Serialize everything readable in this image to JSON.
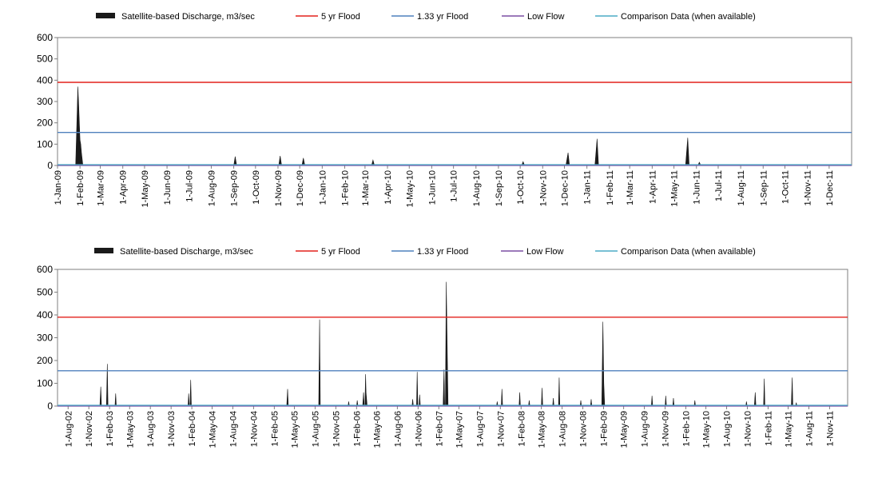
{
  "colors": {
    "discharge": "#1a1a1a",
    "flood5": "#e3201b",
    "flood133": "#4f81bd",
    "lowflow": "#7b4ea3",
    "comparison": "#4bacc6",
    "frame": "#7f7f7f",
    "background": "#ffffff"
  },
  "legend": [
    {
      "key": "discharge",
      "label": "Satellite-based Discharge, m3/sec",
      "symbol": "area"
    },
    {
      "key": "flood5",
      "label": "5 yr Flood",
      "symbol": "line"
    },
    {
      "key": "flood133",
      "label": "1.33 yr Flood",
      "symbol": "line"
    },
    {
      "key": "lowflow",
      "label": "Low Flow",
      "symbol": "line"
    },
    {
      "key": "comparison",
      "label": "Comparison Data (when available)",
      "symbol": "line"
    }
  ],
  "chart_data": [
    {
      "type": "area",
      "title": "",
      "xlabel": "",
      "ylabel": "",
      "ylim": [
        0,
        600
      ],
      "yticks": [
        0,
        100,
        200,
        300,
        400,
        500,
        600
      ],
      "xticks": [
        "1-Jan-09",
        "1-Feb-09",
        "1-Mar-09",
        "1-Apr-09",
        "1-May-09",
        "1-Jun-09",
        "1-Jul-09",
        "1-Aug-09",
        "1-Sep-09",
        "1-Oct-09",
        "1-Nov-09",
        "1-Dec-09",
        "1-Jan-10",
        "1-Feb-10",
        "1-Mar-10",
        "1-Apr-10",
        "1-May-10",
        "1-Jun-10",
        "1-Jul-10",
        "1-Aug-10",
        "1-Sep-10",
        "1-Oct-10",
        "1-Nov-10",
        "1-Dec-10",
        "1-Jan-11",
        "1-Feb-11",
        "1-Mar-11",
        "1-Apr-11",
        "1-May-11",
        "1-Jun-11",
        "1-Jul-11",
        "1-Aug-11",
        "1-Sep-11",
        "1-Oct-11",
        "1-Nov-11",
        "1-Dec-11"
      ],
      "xlim": [
        "2009-01-01",
        "2012-01-01"
      ],
      "legend_position": "top",
      "reference_lines": {
        "flood5": 390,
        "flood133": 155,
        "lowflow": 0,
        "comparison": 0
      },
      "series": [
        {
          "name": "Satellite-based Discharge, m3/sec",
          "points": [
            [
              "2009-01-26",
              0
            ],
            [
              "2009-01-28",
              240
            ],
            [
              "2009-01-29",
              370
            ],
            [
              "2009-01-30",
              300
            ],
            [
              "2009-02-01",
              120
            ],
            [
              "2009-02-02",
              100
            ],
            [
              "2009-02-03",
              60
            ],
            [
              "2009-02-05",
              0
            ],
            [
              "2009-09-01",
              0
            ],
            [
              "2009-09-03",
              42
            ],
            [
              "2009-09-05",
              0
            ],
            [
              "2009-11-02",
              0
            ],
            [
              "2009-11-04",
              45
            ],
            [
              "2009-11-06",
              0
            ],
            [
              "2009-12-04",
              0
            ],
            [
              "2009-12-06",
              35
            ],
            [
              "2009-12-08",
              0
            ],
            [
              "2010-03-10",
              0
            ],
            [
              "2010-03-12",
              25
            ],
            [
              "2010-03-14",
              0
            ],
            [
              "2010-10-03",
              0
            ],
            [
              "2010-10-05",
              18
            ],
            [
              "2010-10-07",
              0
            ],
            [
              "2010-12-03",
              0
            ],
            [
              "2010-12-06",
              60
            ],
            [
              "2010-12-08",
              0
            ],
            [
              "2011-01-12",
              0
            ],
            [
              "2011-01-15",
              125
            ],
            [
              "2011-01-17",
              0
            ],
            [
              "2011-05-17",
              0
            ],
            [
              "2011-05-20",
              130
            ],
            [
              "2011-05-22",
              0
            ],
            [
              "2011-06-03",
              0
            ],
            [
              "2011-06-05",
              15
            ],
            [
              "2011-06-07",
              0
            ]
          ]
        }
      ]
    },
    {
      "type": "area",
      "title": "",
      "xlabel": "",
      "ylabel": "",
      "ylim": [
        0,
        600
      ],
      "yticks": [
        0,
        100,
        200,
        300,
        400,
        500,
        600
      ],
      "xticks": [
        "1-Aug-02",
        "1-Nov-02",
        "1-Feb-03",
        "1-May-03",
        "1-Aug-03",
        "1-Nov-03",
        "1-Feb-04",
        "1-May-04",
        "1-Aug-04",
        "1-Nov-04",
        "1-Feb-05",
        "1-May-05",
        "1-Aug-05",
        "1-Nov-05",
        "1-Feb-06",
        "1-May-06",
        "1-Aug-06",
        "1-Nov-06",
        "1-Feb-07",
        "1-May-07",
        "1-Aug-07",
        "1-Nov-07",
        "1-Feb-08",
        "1-May-08",
        "1-Aug-08",
        "1-Nov-08",
        "1-Feb-09",
        "1-May-09",
        "1-Aug-09",
        "1-Nov-09",
        "1-Feb-10",
        "1-May-10",
        "1-Aug-10",
        "1-Nov-10",
        "1-Feb-11",
        "1-May-11",
        "1-Aug-11",
        "1-Nov-11"
      ],
      "xlim": [
        "2002-06-15",
        "2012-01-20"
      ],
      "legend_position": "top",
      "reference_lines": {
        "flood5": 390,
        "flood133": 155,
        "lowflow": 0,
        "comparison": 0
      },
      "series": [
        {
          "name": "Satellite-based Discharge, m3/sec",
          "points": [
            [
              "2002-12-20",
              0
            ],
            [
              "2002-12-24",
              85
            ],
            [
              "2002-12-27",
              0
            ],
            [
              "2003-01-18",
              0
            ],
            [
              "2003-01-22",
              185
            ],
            [
              "2003-01-25",
              0
            ],
            [
              "2003-02-25",
              0
            ],
            [
              "2003-02-28",
              55
            ],
            [
              "2003-03-03",
              0
            ],
            [
              "2004-01-15",
              0
            ],
            [
              "2004-01-18",
              55
            ],
            [
              "2004-01-21",
              0
            ],
            [
              "2004-01-24",
              0
            ],
            [
              "2004-01-27",
              115
            ],
            [
              "2004-01-30",
              0
            ],
            [
              "2005-03-28",
              0
            ],
            [
              "2005-04-01",
              75
            ],
            [
              "2005-04-04",
              0
            ],
            [
              "2005-08-17",
              0
            ],
            [
              "2005-08-21",
              380
            ],
            [
              "2005-08-24",
              0
            ],
            [
              "2005-12-25",
              0
            ],
            [
              "2005-12-28",
              20
            ],
            [
              "2005-12-31",
              0
            ],
            [
              "2006-02-01",
              0
            ],
            [
              "2006-02-04",
              25
            ],
            [
              "2006-02-07",
              0
            ],
            [
              "2006-02-28",
              0
            ],
            [
              "2006-03-04",
              60
            ],
            [
              "2006-03-07",
              0
            ],
            [
              "2006-03-10",
              0
            ],
            [
              "2006-03-13",
              140
            ],
            [
              "2006-03-15",
              60
            ],
            [
              "2006-03-20",
              0
            ],
            [
              "2006-10-05",
              0
            ],
            [
              "2006-10-08",
              30
            ],
            [
              "2006-10-11",
              0
            ],
            [
              "2006-10-25",
              0
            ],
            [
              "2006-10-28",
              150
            ],
            [
              "2006-10-31",
              0
            ],
            [
              "2006-11-05",
              0
            ],
            [
              "2006-11-08",
              50
            ],
            [
              "2006-11-11",
              0
            ],
            [
              "2007-02-20",
              0
            ],
            [
              "2007-02-24",
              160
            ],
            [
              "2007-02-27",
              0
            ],
            [
              "2007-03-02",
              0
            ],
            [
              "2007-03-06",
              545
            ],
            [
              "2007-03-10",
              270
            ],
            [
              "2007-03-14",
              0
            ],
            [
              "2007-10-15",
              0
            ],
            [
              "2007-10-18",
              20
            ],
            [
              "2007-10-21",
              0
            ],
            [
              "2007-11-05",
              0
            ],
            [
              "2007-11-08",
              75
            ],
            [
              "2007-11-11",
              0
            ],
            [
              "2008-01-23",
              0
            ],
            [
              "2008-01-26",
              60
            ],
            [
              "2008-01-29",
              0
            ],
            [
              "2008-03-05",
              0
            ],
            [
              "2008-03-08",
              25
            ],
            [
              "2008-03-11",
              0
            ],
            [
              "2008-05-01",
              0
            ],
            [
              "2008-05-04",
              80
            ],
            [
              "2008-05-07",
              0
            ],
            [
              "2008-06-20",
              0
            ],
            [
              "2008-06-23",
              35
            ],
            [
              "2008-06-26",
              0
            ],
            [
              "2008-07-16",
              0
            ],
            [
              "2008-07-19",
              125
            ],
            [
              "2008-07-22",
              0
            ],
            [
              "2008-10-20",
              0
            ],
            [
              "2008-10-23",
              25
            ],
            [
              "2008-10-26",
              0
            ],
            [
              "2008-12-05",
              0
            ],
            [
              "2008-12-08",
              30
            ],
            [
              "2008-12-11",
              0
            ],
            [
              "2009-01-24",
              0
            ],
            [
              "2009-01-29",
              370
            ],
            [
              "2009-02-02",
              100
            ],
            [
              "2009-02-06",
              0
            ],
            [
              "2009-09-01",
              0
            ],
            [
              "2009-09-04",
              45
            ],
            [
              "2009-09-07",
              0
            ],
            [
              "2009-11-01",
              0
            ],
            [
              "2009-11-04",
              45
            ],
            [
              "2009-11-07",
              0
            ],
            [
              "2009-12-05",
              0
            ],
            [
              "2009-12-08",
              35
            ],
            [
              "2009-12-11",
              0
            ],
            [
              "2010-03-10",
              0
            ],
            [
              "2010-03-13",
              25
            ],
            [
              "2010-03-16",
              0
            ],
            [
              "2010-10-25",
              0
            ],
            [
              "2010-10-28",
              20
            ],
            [
              "2010-10-31",
              0
            ],
            [
              "2010-12-02",
              0
            ],
            [
              "2010-12-06",
              60
            ],
            [
              "2010-12-09",
              0
            ],
            [
              "2011-01-12",
              0
            ],
            [
              "2011-01-15",
              120
            ],
            [
              "2011-01-18",
              0
            ],
            [
              "2011-05-15",
              0
            ],
            [
              "2011-05-19",
              125
            ],
            [
              "2011-05-22",
              0
            ],
            [
              "2011-06-03",
              0
            ],
            [
              "2011-06-06",
              15
            ],
            [
              "2011-06-09",
              0
            ]
          ]
        }
      ]
    }
  ]
}
